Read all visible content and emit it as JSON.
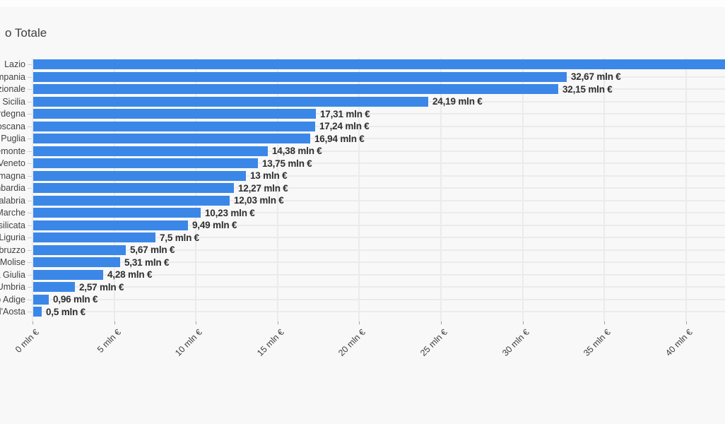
{
  "title": {
    "visible_text": "o Totale"
  },
  "chart_data": {
    "type": "bar",
    "orientation": "horizontal",
    "title": "o Totale",
    "unit": "mln €",
    "bar_color": "#3b87e8",
    "background_color": "#f8f8f8",
    "gridline_color": "#ebebeb",
    "legend": "none",
    "grid": true,
    "categories": [
      "Lazio",
      "Campania",
      "Nazionale",
      "Sicilia",
      "Sardegna",
      "Toscana",
      "Puglia",
      "Piemonte",
      "Veneto",
      "Emilia-Romagna",
      "Lombardia",
      "Calabria",
      "Marche",
      "Basilicata",
      "Liguria",
      "Abruzzo",
      "Molise",
      "Friuli-Venezia Giulia",
      "Umbria",
      "Trentino-Alto Adige",
      "Valle d'Aosta"
    ],
    "values": [
      43.1,
      32.67,
      32.15,
      24.19,
      17.31,
      17.24,
      16.94,
      14.38,
      13.75,
      13,
      12.27,
      12.03,
      10.23,
      9.49,
      7.5,
      5.67,
      5.31,
      4.28,
      2.57,
      0.96,
      0.5
    ],
    "value_labels": [
      "",
      "32,67 mln €",
      "32,15 mln €",
      "24,19 mln €",
      "17,31 mln €",
      "17,24 mln €",
      "16,94 mln €",
      "14,38 mln €",
      "13,75 mln €",
      "13 mln €",
      "12,27 mln €",
      "12,03 mln €",
      "10,23 mln €",
      "9,49 mln €",
      "7,5 mln €",
      "5,67 mln €",
      "5,31 mln €",
      "4,28 mln €",
      "2,57 mln €",
      "0,96 mln €",
      "0,5 mln €"
    ],
    "xlabel": "",
    "ylabel": "",
    "x_axis": {
      "tick_values": [
        0,
        5,
        10,
        15,
        20,
        25,
        30,
        35,
        40
      ],
      "tick_labels": [
        "0 mln €",
        "5 mln €",
        "10 mln €",
        "15 mln €",
        "20 mln €",
        "25 mln €",
        "30 mln €",
        "35 mln €",
        "40 mln €"
      ],
      "visible_range": [
        0,
        42.4
      ],
      "note": "first bar (Lazio) extends past the right edge of the viewport; its value label is not visible"
    }
  }
}
